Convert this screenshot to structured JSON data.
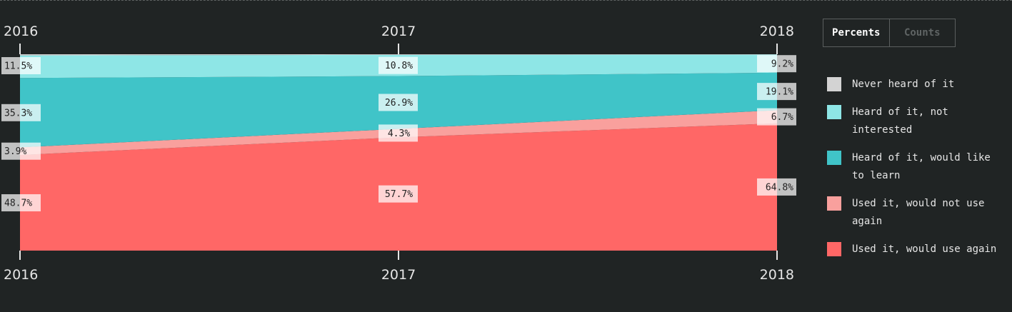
{
  "toggle": {
    "percents_label": "Percents",
    "counts_label": "Counts",
    "active": "percents"
  },
  "legend": [
    {
      "label": "Never heard of it",
      "color": "#d3d3d3"
    },
    {
      "label": "Heard of it, not interested",
      "color": "#8ee6e6"
    },
    {
      "label": "Heard of it, would like to learn",
      "color": "#40c4c8"
    },
    {
      "label": "Used it, would not use again",
      "color": "#f9a09d"
    },
    {
      "label": "Used it, would use again",
      "color": "#ff6766"
    }
  ],
  "chart_data": {
    "type": "area",
    "x": [
      "2016",
      "2017",
      "2018"
    ],
    "series": [
      {
        "name": "Used it, would use again",
        "color": "#ff6766",
        "values": [
          48.7,
          57.7,
          64.8
        ]
      },
      {
        "name": "Used it, would not use again",
        "color": "#f9a09d",
        "values": [
          3.9,
          4.3,
          6.7
        ]
      },
      {
        "name": "Heard of it, would like to learn",
        "color": "#40c4c8",
        "values": [
          35.3,
          26.9,
          19.1
        ]
      },
      {
        "name": "Heard of it, not interested",
        "color": "#8ee6e6",
        "values": [
          11.5,
          10.8,
          9.2
        ]
      },
      {
        "name": "Never heard of it",
        "color": "#d3d3d3",
        "values": [
          0.6,
          0.3,
          0.2
        ]
      }
    ],
    "labels": [
      [
        "48.7%",
        "57.7%",
        "64.8%"
      ],
      [
        "3.9%",
        "4.3%",
        "6.7%"
      ],
      [
        "35.3%",
        "26.9%",
        "19.1%"
      ],
      [
        "11.5%",
        "10.8%",
        "9.2%"
      ]
    ],
    "ylim": [
      0,
      100
    ],
    "stacked": true
  }
}
